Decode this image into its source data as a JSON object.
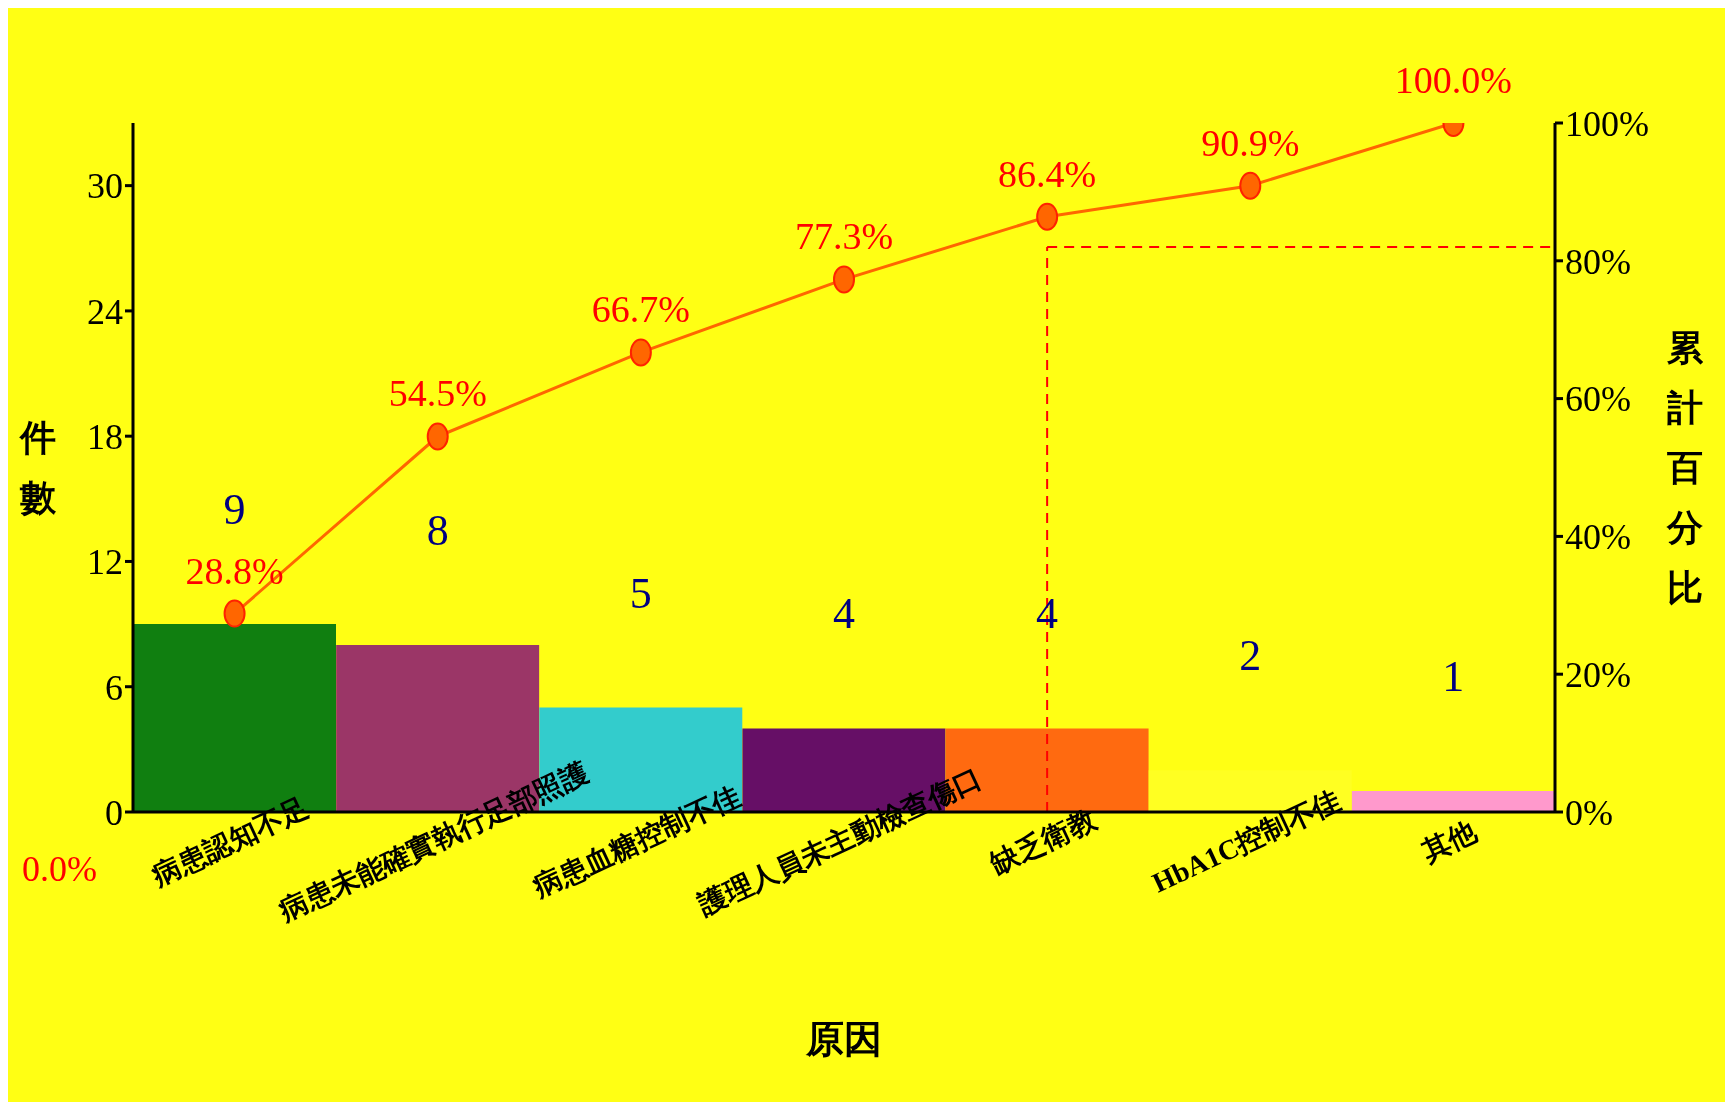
{
  "chart_data": {
    "type": "bar",
    "xlabel": "原因",
    "ylabel": "件數",
    "y2label": "累計百分比",
    "categories": [
      "病患認知不足",
      "病患未能確實執行足部照護",
      "病患血糖控制不佳",
      "護理人員未主動檢查傷口",
      "缺乏衛教",
      "HbA1C控制不佳",
      "其他"
    ],
    "ylim": [
      0,
      33
    ],
    "yticks": [
      0,
      6,
      12,
      18,
      24,
      30
    ],
    "y2lim": [
      0,
      100
    ],
    "y2ticks": [
      {
        "value": 0,
        "label": "0%"
      },
      {
        "value": 20,
        "label": "20%"
      },
      {
        "value": 40,
        "label": "40%"
      },
      {
        "value": 60,
        "label": "60%"
      },
      {
        "value": 80,
        "label": "80%"
      },
      {
        "value": 100,
        "label": "100%"
      }
    ],
    "data_labels": true,
    "annotations": [
      "0.0%"
    ],
    "grid": false,
    "series": [
      {
        "colors": [
          "#107f10",
          "#9b3667",
          "#33cccc",
          "#660f66",
          "#ff6a10",
          "#ffff22",
          "#ff99cc"
        ],
        "values": [
          9,
          8,
          5,
          4,
          4,
          2,
          1
        ]
      },
      {
        "type": "line",
        "axis": "y2",
        "color": "#ff6600",
        "marker": "circle",
        "values": [
          28.8,
          54.5,
          66.7,
          77.3,
          86.4,
          90.9,
          100
        ],
        "value_labels": [
          "28.8%",
          "54.5%",
          "66.7%",
          "77.3%",
          "86.4%",
          "90.9%",
          "100.0%"
        ]
      }
    ],
    "ref_lines": [
      {
        "axis": "y2",
        "value": 82,
        "color": "#ff0000",
        "line_style": "dashed"
      },
      {
        "axis": "x",
        "value": "缺乏衛教",
        "color": "#ff0000",
        "line_style": "dashed"
      }
    ]
  }
}
